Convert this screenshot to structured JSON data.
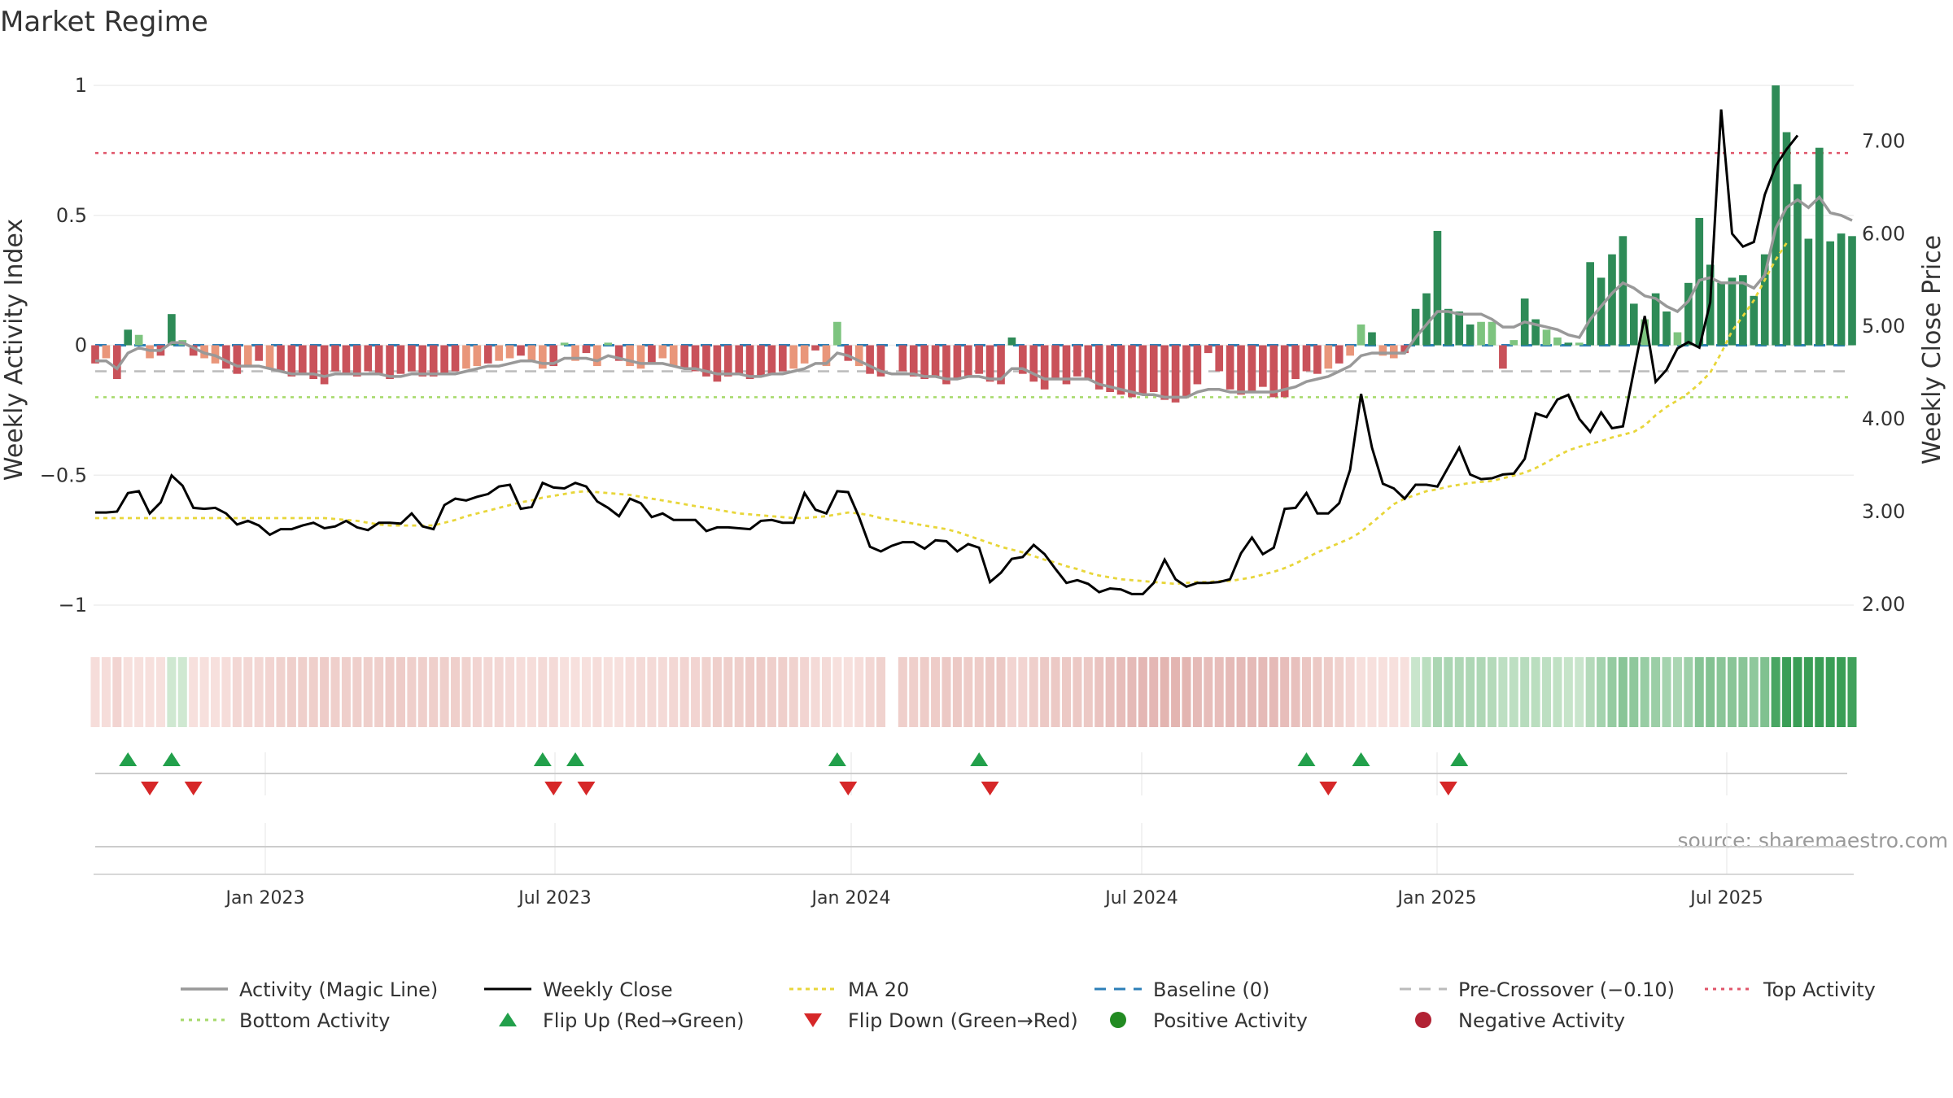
{
  "title": "Market Regime",
  "source_text": "source: sharemaestro.com",
  "colors": {
    "magic_line": "#999999",
    "close": "#000000",
    "ma20": "#e8d63a",
    "baseline": "#2c7fb8",
    "pre_crossover": "#bbbbbb",
    "top_activity": "#e0556a",
    "bottom_activity": "#a6d96a",
    "pos_dark": "#2e8b57",
    "pos_light": "#7dc47f",
    "neg_dark": "#c9525a",
    "neg_light": "#e9967a",
    "flip_up": "#22a04b",
    "flip_down": "#d62728"
  },
  "chart_data": {
    "type": "bar",
    "x_labels": [
      "Jan 2023",
      "Jul 2023",
      "Jan 2024",
      "Jul 2024",
      "Jan 2025",
      "Jul 2025"
    ],
    "y_left": {
      "label": "Weekly Activity Index",
      "lim": [
        -1.05,
        1.0
      ],
      "ticks": [
        1,
        0.5,
        0,
        -0.5,
        -1
      ],
      "tick_labels": [
        "1",
        "0.5",
        "0",
        "−0.5",
        "−1"
      ]
    },
    "y_right": {
      "label": "Weekly Close Price",
      "lim": [
        1.85,
        7.6
      ],
      "ticks": [
        7.0,
        6.0,
        5.0,
        4.0,
        3.0,
        2.0
      ],
      "tick_labels": [
        "7.00",
        "6.00",
        "5.00",
        "4.00",
        "3.00",
        "2.00"
      ]
    },
    "reference_lines": {
      "baseline": 0,
      "pre_crossover": -0.1,
      "top_activity": 0.74,
      "bottom_activity": -0.2
    },
    "activity": [
      -0.07,
      -0.05,
      -0.13,
      0.06,
      0.04,
      -0.05,
      -0.04,
      0.12,
      0.02,
      -0.04,
      -0.05,
      -0.07,
      -0.09,
      -0.11,
      -0.08,
      -0.06,
      -0.09,
      -0.1,
      -0.12,
      -0.11,
      -0.13,
      -0.15,
      -0.1,
      -0.11,
      -0.12,
      -0.1,
      -0.11,
      -0.13,
      -0.11,
      -0.1,
      -0.12,
      -0.12,
      -0.11,
      -0.1,
      -0.09,
      -0.08,
      -0.07,
      -0.06,
      -0.05,
      -0.04,
      -0.06,
      -0.09,
      -0.08,
      0.01,
      -0.06,
      -0.03,
      -0.08,
      0.01,
      -0.06,
      -0.08,
      -0.09,
      -0.07,
      -0.05,
      -0.08,
      -0.09,
      -0.1,
      -0.12,
      -0.14,
      -0.12,
      -0.11,
      -0.13,
      -0.12,
      -0.11,
      -0.1,
      -0.09,
      -0.07,
      -0.02,
      -0.08,
      0.09,
      -0.06,
      -0.08,
      -0.11,
      -0.12,
      -0.13,
      -0.1,
      -0.12,
      -0.13,
      -0.12,
      -0.15,
      -0.13,
      -0.12,
      -0.11,
      -0.14,
      -0.15,
      0.03,
      -0.11,
      -0.14,
      -0.17,
      -0.13,
      -0.15,
      -0.12,
      -0.13,
      -0.17,
      -0.18,
      -0.19,
      -0.2,
      -0.19,
      -0.18,
      -0.21,
      -0.22,
      -0.2,
      -0.15,
      -0.03,
      -0.1,
      -0.17,
      -0.19,
      -0.18,
      -0.16,
      -0.2,
      -0.2,
      -0.13,
      -0.1,
      -0.11,
      -0.09,
      -0.07,
      -0.04,
      0.08,
      0.05,
      -0.04,
      -0.05,
      -0.03,
      0.14,
      0.2,
      0.44,
      0.14,
      0.13,
      0.08,
      0.09,
      0.09,
      -0.09,
      0.02,
      0.18,
      0.1,
      0.06,
      0.03,
      0.01,
      0.01,
      0.32,
      0.26,
      0.35,
      0.42,
      0.16,
      0.1,
      0.2,
      0.13,
      0.05,
      0.24,
      0.49,
      0.31,
      0.24,
      0.26,
      0.27,
      0.19,
      0.35,
      1.0,
      0.82,
      0.62,
      0.41,
      0.76,
      0.4,
      0.43,
      0.42
    ],
    "magic_line": [
      -0.06,
      -0.06,
      -0.09,
      -0.03,
      -0.01,
      -0.02,
      -0.02,
      0.01,
      0.01,
      -0.01,
      -0.03,
      -0.04,
      -0.06,
      -0.08,
      -0.08,
      -0.08,
      -0.09,
      -0.1,
      -0.11,
      -0.11,
      -0.11,
      -0.12,
      -0.11,
      -0.11,
      -0.11,
      -0.11,
      -0.11,
      -0.12,
      -0.12,
      -0.11,
      -0.11,
      -0.11,
      -0.11,
      -0.11,
      -0.1,
      -0.09,
      -0.08,
      -0.08,
      -0.07,
      -0.06,
      -0.06,
      -0.07,
      -0.07,
      -0.05,
      -0.05,
      -0.05,
      -0.06,
      -0.04,
      -0.05,
      -0.06,
      -0.07,
      -0.07,
      -0.07,
      -0.08,
      -0.09,
      -0.09,
      -0.1,
      -0.11,
      -0.11,
      -0.11,
      -0.12,
      -0.12,
      -0.11,
      -0.11,
      -0.1,
      -0.09,
      -0.07,
      -0.07,
      -0.03,
      -0.04,
      -0.06,
      -0.08,
      -0.1,
      -0.11,
      -0.11,
      -0.11,
      -0.12,
      -0.12,
      -0.13,
      -0.13,
      -0.12,
      -0.12,
      -0.13,
      -0.13,
      -0.09,
      -0.09,
      -0.11,
      -0.13,
      -0.13,
      -0.13,
      -0.13,
      -0.13,
      -0.15,
      -0.16,
      -0.17,
      -0.18,
      -0.19,
      -0.19,
      -0.2,
      -0.2,
      -0.2,
      -0.18,
      -0.17,
      -0.17,
      -0.18,
      -0.18,
      -0.18,
      -0.18,
      -0.18,
      -0.17,
      -0.16,
      -0.14,
      -0.13,
      -0.12,
      -0.1,
      -0.08,
      -0.04,
      -0.03,
      -0.03,
      -0.03,
      -0.03,
      0.03,
      0.08,
      0.13,
      0.13,
      0.12,
      0.12,
      0.12,
      0.1,
      0.07,
      0.07,
      0.09,
      0.08,
      0.07,
      0.06,
      0.04,
      0.03,
      0.1,
      0.15,
      0.2,
      0.24,
      0.22,
      0.19,
      0.18,
      0.15,
      0.13,
      0.17,
      0.25,
      0.26,
      0.24,
      0.24,
      0.24,
      0.22,
      0.27,
      0.45,
      0.53,
      0.56,
      0.53,
      0.57,
      0.51,
      0.5,
      0.48
    ],
    "weekly_close": [
      2.99,
      2.99,
      3.0,
      3.2,
      3.22,
      2.98,
      3.1,
      3.39,
      3.28,
      3.04,
      3.03,
      3.04,
      2.98,
      2.86,
      2.9,
      2.85,
      2.75,
      2.81,
      2.81,
      2.85,
      2.88,
      2.82,
      2.84,
      2.9,
      2.83,
      2.8,
      2.88,
      2.88,
      2.87,
      2.98,
      2.84,
      2.81,
      3.07,
      3.14,
      3.12,
      3.16,
      3.19,
      3.27,
      3.29,
      3.03,
      3.05,
      3.31,
      3.26,
      3.25,
      3.31,
      3.27,
      3.11,
      3.04,
      2.95,
      3.14,
      3.09,
      2.94,
      2.98,
      2.91,
      2.91,
      2.91,
      2.79,
      2.83,
      2.83,
      2.82,
      2.81,
      2.9,
      2.91,
      2.88,
      2.88,
      3.2,
      3.02,
      2.98,
      3.22,
      3.21,
      2.94,
      2.62,
      2.57,
      2.63,
      2.67,
      2.67,
      2.6,
      2.69,
      2.68,
      2.57,
      2.65,
      2.61,
      2.24,
      2.34,
      2.49,
      2.51,
      2.64,
      2.54,
      2.38,
      2.23,
      2.26,
      2.22,
      2.13,
      2.17,
      2.16,
      2.11,
      2.11,
      2.23,
      2.48,
      2.27,
      2.19,
      2.23,
      2.23,
      2.24,
      2.27,
      2.55,
      2.72,
      2.54,
      2.61,
      3.03,
      3.04,
      3.2,
      2.98,
      2.98,
      3.09,
      3.45,
      4.27,
      3.69,
      3.3,
      3.25,
      3.14,
      3.29,
      3.29,
      3.27,
      3.48,
      3.69,
      3.4,
      3.35,
      3.36,
      3.4,
      3.41,
      3.57,
      4.06,
      4.02,
      4.21,
      4.26,
      4.0,
      3.86,
      4.07,
      3.9,
      3.92,
      4.52,
      5.11,
      4.4,
      4.53,
      4.76,
      4.83,
      4.77,
      5.26,
      7.34,
      6.0,
      5.86,
      5.91,
      6.42,
      6.73,
      6.91,
      7.06
    ],
    "ma20": [
      2.93,
      2.93,
      2.93,
      2.93,
      2.93,
      2.93,
      2.93,
      2.93,
      2.93,
      2.93,
      2.93,
      2.93,
      2.93,
      2.93,
      2.93,
      2.93,
      2.93,
      2.93,
      2.93,
      2.93,
      2.93,
      2.93,
      2.92,
      2.91,
      2.9,
      2.88,
      2.86,
      2.85,
      2.85,
      2.85,
      2.85,
      2.85,
      2.88,
      2.91,
      2.95,
      2.98,
      3.01,
      3.04,
      3.07,
      3.1,
      3.12,
      3.15,
      3.17,
      3.19,
      3.21,
      3.22,
      3.21,
      3.2,
      3.19,
      3.18,
      3.16,
      3.14,
      3.12,
      3.1,
      3.08,
      3.06,
      3.04,
      3.02,
      3.0,
      2.98,
      2.97,
      2.96,
      2.95,
      2.94,
      2.93,
      2.93,
      2.94,
      2.95,
      2.97,
      2.99,
      2.98,
      2.96,
      2.93,
      2.91,
      2.89,
      2.87,
      2.85,
      2.83,
      2.81,
      2.78,
      2.74,
      2.7,
      2.66,
      2.62,
      2.59,
      2.56,
      2.52,
      2.48,
      2.45,
      2.41,
      2.38,
      2.34,
      2.31,
      2.29,
      2.27,
      2.26,
      2.25,
      2.24,
      2.23,
      2.22,
      2.23,
      2.24,
      2.24,
      2.25,
      2.25,
      2.27,
      2.29,
      2.32,
      2.35,
      2.39,
      2.44,
      2.5,
      2.56,
      2.61,
      2.66,
      2.71,
      2.78,
      2.88,
      2.98,
      3.08,
      3.14,
      3.18,
      3.22,
      3.24,
      3.27,
      3.29,
      3.31,
      3.32,
      3.33,
      3.36,
      3.39,
      3.42,
      3.47,
      3.53,
      3.6,
      3.66,
      3.7,
      3.73,
      3.76,
      3.8,
      3.83,
      3.86,
      3.93,
      4.04,
      4.13,
      4.2,
      4.28,
      4.38,
      4.5,
      4.71,
      4.95,
      5.11,
      5.28,
      5.5,
      5.72,
      5.9
    ],
    "flip_up_weeks": [
      3,
      7,
      41,
      44,
      68,
      81,
      111,
      116,
      125
    ],
    "flip_down_weeks": [
      5,
      9,
      42,
      45,
      69,
      82,
      113,
      124
    ],
    "gap_weeks": [
      73
    ]
  },
  "legend": [
    {
      "key": "magic",
      "label": "Activity (Magic Line)"
    },
    {
      "key": "close",
      "label": "Weekly Close"
    },
    {
      "key": "ma20",
      "label": "MA 20"
    },
    {
      "key": "baseline",
      "label": "Baseline (0)"
    },
    {
      "key": "precross",
      "label": "Pre-Crossover (−0.10)"
    },
    {
      "key": "top",
      "label": "Top Activity"
    },
    {
      "key": "bottom",
      "label": "Bottom Activity"
    },
    {
      "key": "flipup",
      "label": "Flip Up (Red→Green)"
    },
    {
      "key": "flipdown",
      "label": "Flip Down (Green→Red)"
    },
    {
      "key": "pos",
      "label": "Positive Activity"
    },
    {
      "key": "neg",
      "label": "Negative Activity"
    }
  ]
}
